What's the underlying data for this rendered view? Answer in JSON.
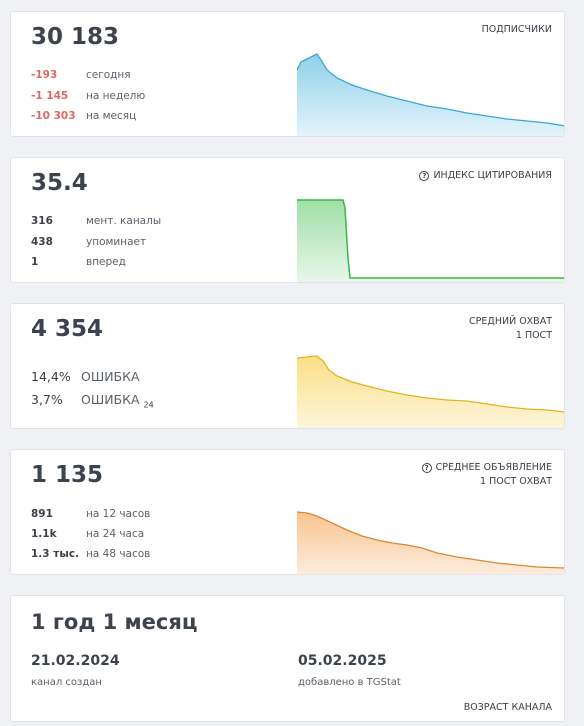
{
  "cards": [
    {
      "value": "30 183",
      "label": "ПОДПИСЧИКИ",
      "rows": [
        {
          "value": "-193",
          "text": "сегодня"
        },
        {
          "value": "-1 145",
          "text": "на неделю"
        },
        {
          "value": "-10 303",
          "text": "на месяц"
        }
      ],
      "color": "#3aa8cf"
    },
    {
      "value": "35.4",
      "label": "ИНДЕКС ЦИТИРОВАНИЯ",
      "rows": [
        {
          "value": "316",
          "text": "мент. каналы"
        },
        {
          "value": "438",
          "text": "упоминает"
        },
        {
          "value": "1",
          "text": "вперед"
        }
      ],
      "color": "#3bb54a"
    },
    {
      "value": "4 354",
      "label_line1": "СРЕДНИЙ ОХВАТ",
      "label_line2": "1 ПОСТ",
      "rows": [
        {
          "value": "14,4%",
          "text": "ОШИБКА"
        },
        {
          "value": "3,7%",
          "text": "ОШИБКА",
          "sub": "24"
        }
      ],
      "color": "#e8c12b"
    },
    {
      "value": "1 135",
      "label_line1": "СРЕДНЕЕ ОБЪЯВЛЕНИЕ",
      "label_line2": "1 ПОСТ ОХВАТ",
      "rows": [
        {
          "value": "891",
          "text": "на 12 часов"
        },
        {
          "value": "1.1k",
          "text": "на 24 часа"
        },
        {
          "value": "1.3 тыс.",
          "text": "на 48 часов"
        }
      ],
      "color": "#e89640"
    }
  ],
  "age": {
    "title": "1 год 1 месяц",
    "created_date": "21.02.2024",
    "created_label": "канал создан",
    "added_date": "05.02.2025",
    "added_label": "добавлено в TGStat",
    "label": "ВОЗРАСТ КАНАЛА"
  },
  "icons": [
    "help-circle-icon"
  ]
}
